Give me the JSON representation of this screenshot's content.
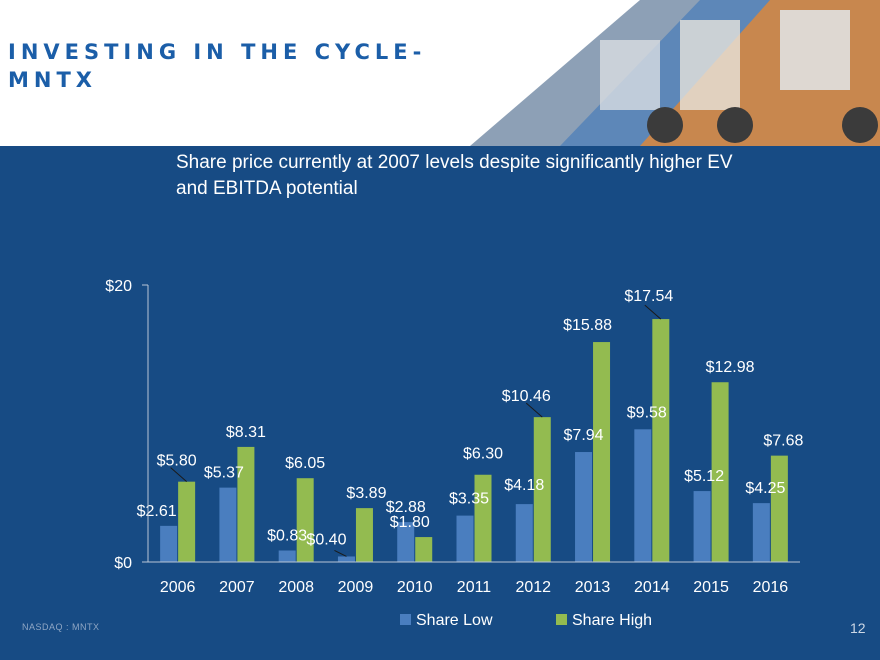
{
  "header": {
    "title_line1": "INVESTING IN THE CYCLE-",
    "title_line2": "MNTX",
    "subtitle": "Share price currently at 2007 levels despite significantly higher EV and EBITDA potential"
  },
  "footer": {
    "left_text": "NASDAQ : MNTX",
    "page_number": "12"
  },
  "colors": {
    "background": "#174b84",
    "share_low": "#4a7ebf",
    "share_high": "#93bb50",
    "title": "#1b5ea8"
  },
  "chart_data": {
    "type": "bar",
    "categories": [
      "2006",
      "2007",
      "2008",
      "2009",
      "2010",
      "2011",
      "2012",
      "2013",
      "2014",
      "2015",
      "2016"
    ],
    "series": [
      {
        "name": "Share Low",
        "values": [
          2.61,
          5.37,
          0.83,
          0.4,
          2.88,
          3.35,
          4.18,
          7.94,
          9.58,
          5.12,
          4.25
        ]
      },
      {
        "name": "Share High",
        "values": [
          5.8,
          8.31,
          6.05,
          3.89,
          1.8,
          6.3,
          10.46,
          15.88,
          17.54,
          12.98,
          7.68
        ]
      }
    ],
    "data_labels": {
      "low": [
        "$2.61",
        "$5.37",
        "$0.83",
        "$0.40",
        "$2.88",
        "$3.35",
        "$4.18",
        "$7.94",
        "$9.58",
        "$5.12",
        "$4.25"
      ],
      "high": [
        "$5.80",
        "$8.31",
        "$6.05",
        "$3.89",
        "$1.80",
        "$6.30",
        "$10.46",
        "$15.88",
        "$17.54",
        "$12.98",
        "$7.68"
      ]
    },
    "y_ticks": [
      "$0",
      "$20"
    ],
    "ylim": [
      0,
      20
    ],
    "legend_position": "bottom",
    "grid": false
  }
}
